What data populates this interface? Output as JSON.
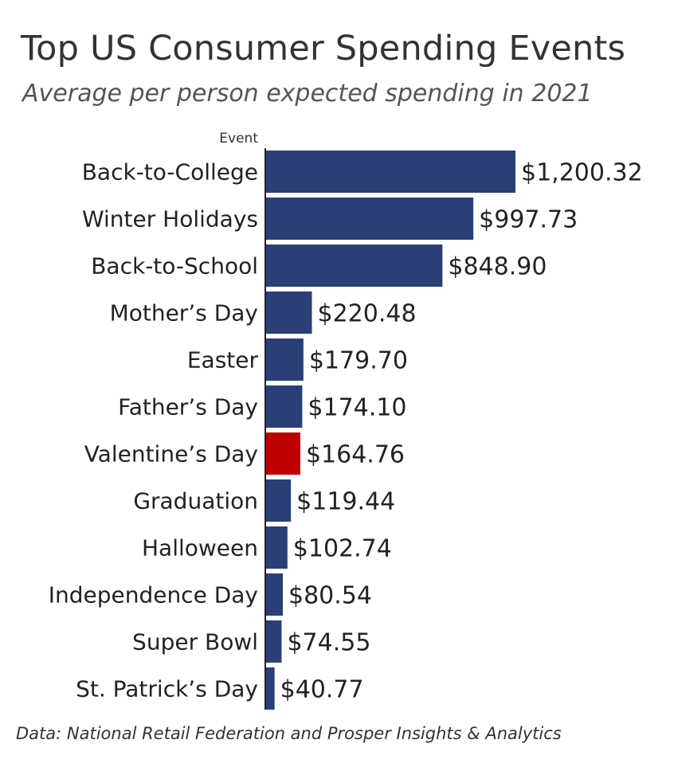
{
  "title": "Top US Consumer Spending Events",
  "subtitle": "Average per person expected spending in 2021",
  "source": "Data: National Retail Federation and Prosper Insights & Analytics",
  "colors": {
    "bar": "#2b3f77",
    "highlight": "#c00000",
    "axis": "#222222"
  },
  "chart_data": {
    "type": "bar",
    "orientation": "horizontal",
    "ylabel": "Event",
    "categories": [
      "Back-to-College",
      "Winter Holidays",
      "Back-to-School",
      "Mother’s Day",
      "Easter",
      "Father’s Day",
      "Valentine’s Day",
      "Graduation",
      "Halloween",
      "Independence Day",
      "Super Bowl",
      "St. Patrick’s Day"
    ],
    "values": [
      1200.32,
      997.73,
      848.9,
      220.48,
      179.7,
      174.1,
      164.76,
      119.44,
      102.74,
      80.54,
      74.55,
      40.77
    ],
    "value_labels": [
      "$1,200.32",
      "$997.73",
      "$848.90",
      "$220.48",
      "$179.70",
      "$174.10",
      "$164.76",
      "$119.44",
      "$102.74",
      "$80.54",
      "$74.55",
      "$40.77"
    ],
    "highlight": "Valentine’s Day",
    "xlim": [
      0,
      1200.32
    ],
    "grid": false,
    "legend": "none"
  }
}
